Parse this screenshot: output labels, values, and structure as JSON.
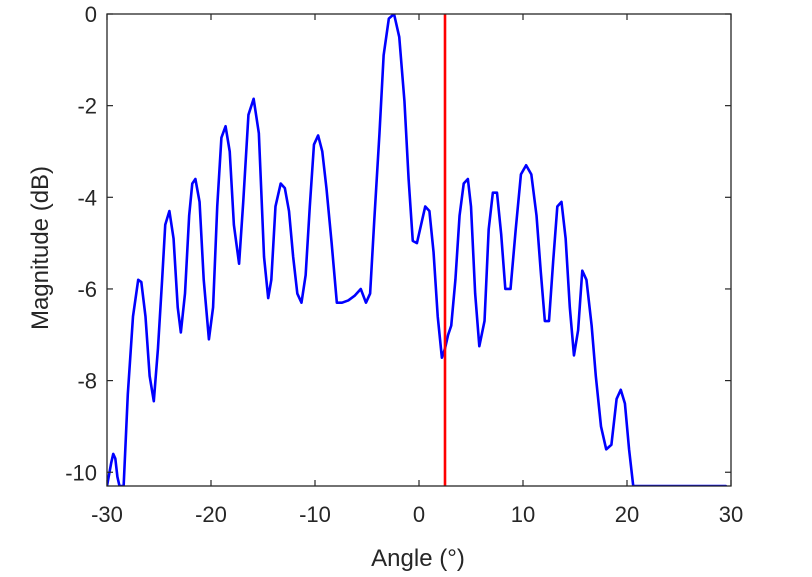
{
  "chart_data": {
    "type": "line",
    "title": "",
    "xlabel": "Angle (°)",
    "ylabel": "Magnitude (dB)",
    "xlim": [
      -30,
      30
    ],
    "ylim": [
      -10.3,
      0
    ],
    "xticks": [
      -30,
      -20,
      -10,
      0,
      10,
      20,
      30
    ],
    "yticks": [
      0,
      -2,
      -4,
      -6,
      -8,
      -10
    ],
    "grid": false,
    "legend": "none",
    "series": [
      {
        "color": "#0000ff",
        "x": [
          -30.0,
          -29.6,
          -29.4,
          -29.2,
          -29.0,
          -28.8,
          -28.4,
          -28.0,
          -27.5,
          -27.0,
          -26.7,
          -26.3,
          -25.9,
          -25.5,
          -25.1,
          -24.7,
          -24.4,
          -24.0,
          -23.6,
          -23.2,
          -22.9,
          -22.5,
          -22.1,
          -21.8,
          -21.5,
          -21.1,
          -20.7,
          -20.2,
          -19.8,
          -19.4,
          -19.0,
          -18.6,
          -18.2,
          -17.8,
          -17.3,
          -16.9,
          -16.4,
          -15.9,
          -15.4,
          -14.9,
          -14.5,
          -14.2,
          -13.8,
          -13.3,
          -12.9,
          -12.5,
          -12.1,
          -11.7,
          -11.3,
          -10.9,
          -10.5,
          -10.1,
          -9.7,
          -9.3,
          -8.9,
          -8.4,
          -7.9,
          -7.4,
          -6.8,
          -6.2,
          -5.6,
          -5.1,
          -4.7,
          -4.3,
          -3.8,
          -3.4,
          -2.9,
          -2.4,
          -1.9,
          -1.4,
          -1.0,
          -0.6,
          -0.2,
          0.3,
          0.6,
          1.0,
          1.4,
          1.8,
          2.2,
          2.5,
          2.8,
          3.1,
          3.5,
          3.9,
          4.3,
          4.7,
          5.0,
          5.4,
          5.8,
          6.3,
          6.7,
          7.1,
          7.5,
          7.9,
          8.3,
          8.8,
          9.3,
          9.8,
          10.3,
          10.8,
          11.3,
          11.7,
          12.1,
          12.5,
          12.9,
          13.3,
          13.7,
          14.1,
          14.5,
          14.9,
          15.3,
          15.7,
          16.1,
          16.6,
          17.0,
          17.5,
          18.0,
          18.5,
          19.0,
          19.4,
          19.8,
          20.2,
          20.6,
          21.0,
          21.5,
          21.9,
          22.3,
          22.7,
          23.1,
          23.5,
          23.9,
          24.3,
          24.8,
          25.2,
          25.6,
          26.0,
          26.4,
          26.8,
          27.2,
          27.6,
          28.0,
          28.4,
          28.8,
          29.2,
          29.5
        ],
        "y": [
          -10.3,
          -9.8,
          -9.6,
          -9.7,
          -10.1,
          -10.3,
          -10.3,
          -8.3,
          -6.6,
          -5.8,
          -5.85,
          -6.6,
          -7.9,
          -8.45,
          -7.3,
          -5.8,
          -4.6,
          -4.3,
          -4.9,
          -6.4,
          -6.95,
          -6.1,
          -4.4,
          -3.7,
          -3.6,
          -4.1,
          -5.8,
          -7.1,
          -6.4,
          -4.2,
          -2.7,
          -2.45,
          -3.0,
          -4.6,
          -5.45,
          -4.1,
          -2.2,
          -1.85,
          -2.6,
          -5.3,
          -6.2,
          -5.8,
          -4.2,
          -3.7,
          -3.8,
          -4.3,
          -5.3,
          -6.1,
          -6.3,
          -5.7,
          -4.2,
          -2.85,
          -2.65,
          -3.0,
          -3.8,
          -5.0,
          -6.3,
          -6.3,
          -6.25,
          -6.15,
          -6.0,
          -6.3,
          -6.1,
          -4.5,
          -2.6,
          -0.9,
          -0.1,
          0.0,
          -0.5,
          -1.9,
          -3.6,
          -4.95,
          -5.0,
          -4.5,
          -4.2,
          -4.3,
          -5.2,
          -6.6,
          -7.5,
          -7.3,
          -7.0,
          -6.8,
          -5.8,
          -4.4,
          -3.7,
          -3.6,
          -4.2,
          -6.1,
          -7.25,
          -6.7,
          -4.7,
          -3.9,
          -3.9,
          -4.8,
          -6.0,
          -6.0,
          -4.7,
          -3.5,
          -3.3,
          -3.5,
          -4.4,
          -5.6,
          -6.7,
          -6.7,
          -5.4,
          -4.2,
          -4.1,
          -4.9,
          -6.4,
          -7.45,
          -6.9,
          -5.6,
          -5.8,
          -6.8,
          -7.9,
          -9.0,
          -9.5,
          -9.4,
          -8.4,
          -8.2,
          -8.5,
          -9.5,
          -10.3,
          -10.3,
          -10.3,
          -10.3,
          -10.3,
          -10.3,
          -10.3,
          -10.3,
          -10.3,
          -10.3,
          -10.3,
          -10.3,
          -10.3,
          -10.3,
          -10.3,
          -10.3,
          -10.3,
          -10.3,
          -10.3,
          -10.3,
          -10.3,
          -10.3,
          -10.3
        ]
      },
      {
        "color": "#ff0000",
        "x": [
          2.5,
          2.5
        ],
        "y": [
          -10.3,
          0
        ]
      }
    ]
  }
}
